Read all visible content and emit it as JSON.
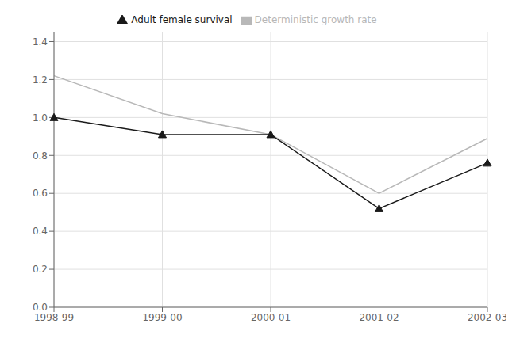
{
  "chart_data": {
    "type": "line",
    "categories": [
      "1998-99",
      "1999-00",
      "2000-01",
      "2001-02",
      "2002-03"
    ],
    "series": [
      {
        "name": "Deterministic growth rate",
        "color": "#b8b8b8",
        "marker": "none",
        "values": [
          1.22,
          1.02,
          0.91,
          0.6,
          0.89
        ]
      },
      {
        "name": "Adult female survival",
        "color": "#1a1a1a",
        "marker": "triangle",
        "values": [
          1.0,
          0.91,
          0.91,
          0.52,
          0.76
        ]
      }
    ],
    "ylim": [
      0,
      1.45
    ],
    "yticks": [
      {
        "value": 0,
        "label": "0.0"
      },
      0.2,
      0.4,
      0.6,
      0.8,
      {
        "value": 1,
        "label": "1.0"
      },
      1.2,
      1.4
    ],
    "grid": true,
    "legend": "top"
  }
}
